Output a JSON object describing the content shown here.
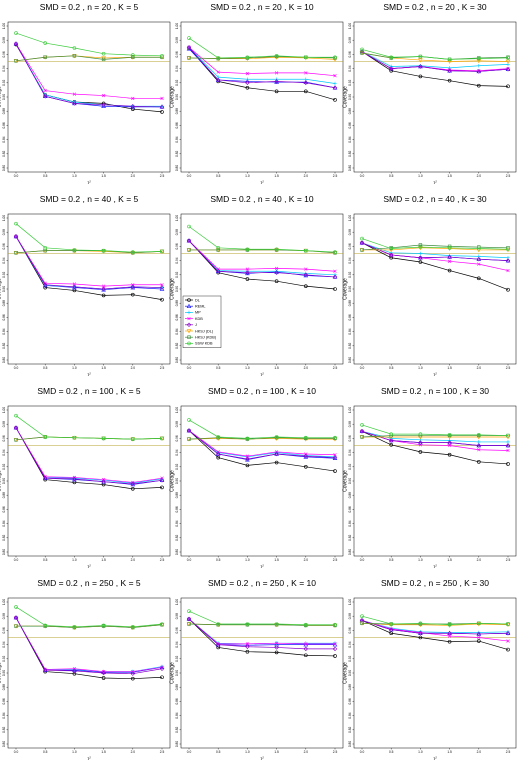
{
  "chart_data": {
    "type": "line",
    "xlabel": "τ²",
    "ylabel": "Coverage",
    "x": [
      0.0,
      0.5,
      1.0,
      1.5,
      2.0,
      2.5
    ],
    "x_ticks": [
      "0.0",
      "0.5",
      "1.0",
      "1.5",
      "2.0",
      "2.5"
    ],
    "y_ticks": [
      "0.80",
      "0.82",
      "0.84",
      "0.86",
      "0.88",
      "0.90",
      "0.92",
      "0.94",
      "0.96",
      "0.98",
      "1.00"
    ],
    "ylim": [
      0.8,
      1.0
    ],
    "reference_line": 0.95,
    "legend": {
      "placement": "left-center of panel row 2, column 2",
      "entries": [
        {
          "name": "DL",
          "color": "#000000",
          "marker": "circle"
        },
        {
          "name": "REML",
          "color": "#1a1aff",
          "marker": "triangle"
        },
        {
          "name": "MP",
          "color": "#00c8ff",
          "marker": "plus"
        },
        {
          "name": "KDB",
          "color": "#ff00ff",
          "marker": "x"
        },
        {
          "name": "J",
          "color": "#8a00c8",
          "marker": "diamond"
        },
        {
          "name": "HKSJ (DL)",
          "color": "#ffa500",
          "marker": "triangle-down"
        },
        {
          "name": "HKSJ (KDB)",
          "color": "#3c8c3c",
          "marker": "square"
        },
        {
          "name": "SSW KDB",
          "color": "#3ccc3c",
          "marker": "circle"
        }
      ]
    },
    "panels": [
      {
        "title": "SMD = 0.2 , n = 20 , K = 5",
        "series": [
          [
            0.974,
            0.903,
            0.893,
            0.891,
            0.883,
            0.879
          ],
          [
            0.975,
            0.901,
            0.891,
            0.887,
            0.886,
            0.886
          ],
          [
            0.975,
            0.903,
            0.893,
            0.889,
            0.887,
            0.887
          ],
          [
            0.975,
            0.909,
            0.904,
            0.902,
            0.898,
            0.898
          ],
          [
            0.975,
            0.901,
            0.891,
            0.889,
            0.887,
            0.886
          ],
          [
            0.951,
            0.956,
            0.958,
            0.955,
            0.956,
            0.956
          ],
          [
            0.951,
            0.956,
            0.958,
            0.953,
            0.956,
            0.956
          ],
          [
            0.99,
            0.976,
            0.969,
            0.961,
            0.959,
            0.958
          ]
        ]
      },
      {
        "title": "SMD = 0.2 , n = 20 , K = 10",
        "series": [
          [
            0.969,
            0.922,
            0.913,
            0.908,
            0.908,
            0.896
          ],
          [
            0.968,
            0.924,
            0.922,
            0.921,
            0.921,
            0.913
          ],
          [
            0.97,
            0.928,
            0.925,
            0.925,
            0.925,
            0.919
          ],
          [
            0.97,
            0.935,
            0.933,
            0.934,
            0.934,
            0.93
          ],
          [
            0.97,
            0.924,
            0.92,
            0.922,
            0.92,
            0.913
          ],
          [
            0.955,
            0.954,
            0.954,
            0.956,
            0.955,
            0.953
          ],
          [
            0.955,
            0.954,
            0.955,
            0.957,
            0.956,
            0.955
          ],
          [
            0.983,
            0.955,
            0.956,
            0.958,
            0.956,
            0.956
          ]
        ]
      },
      {
        "title": "SMD = 0.2 , n = 20 , K = 30",
        "series": [
          [
            0.964,
            0.937,
            0.929,
            0.923,
            0.916,
            0.915
          ],
          [
            0.964,
            0.94,
            0.943,
            0.937,
            0.936,
            0.939
          ],
          [
            0.964,
            0.943,
            0.944,
            0.941,
            0.944,
            0.946
          ],
          [
            0.964,
            0.94,
            0.943,
            0.938,
            0.937,
            0.94
          ],
          [
            0.964,
            0.94,
            0.943,
            0.937,
            0.936,
            0.939
          ],
          [
            0.962,
            0.955,
            0.952,
            0.95,
            0.951,
            0.95
          ],
          [
            0.962,
            0.955,
            0.957,
            0.953,
            0.955,
            0.956
          ],
          [
            0.967,
            0.956,
            0.957,
            0.953,
            0.954,
            0.955
          ]
        ]
      },
      {
        "title": "SMD = 0.2 , n = 40 , K = 5",
        "series": [
          [
            0.974,
            0.902,
            0.898,
            0.891,
            0.892,
            0.885
          ],
          [
            0.974,
            0.905,
            0.902,
            0.899,
            0.902,
            0.9
          ],
          [
            0.974,
            0.905,
            0.903,
            0.9,
            0.903,
            0.902
          ],
          [
            0.974,
            0.908,
            0.907,
            0.904,
            0.906,
            0.906
          ],
          [
            0.974,
            0.906,
            0.903,
            0.9,
            0.903,
            0.902
          ],
          [
            0.951,
            0.954,
            0.954,
            0.953,
            0.951,
            0.953
          ],
          [
            0.951,
            0.954,
            0.954,
            0.954,
            0.951,
            0.953
          ],
          [
            0.992,
            0.958,
            0.955,
            0.954,
            0.952,
            0.953
          ]
        ]
      },
      {
        "title": "SMD = 0.2 , n = 40 , K = 10",
        "series": [
          [
            0.968,
            0.923,
            0.914,
            0.911,
            0.904,
            0.9
          ],
          [
            0.968,
            0.925,
            0.922,
            0.924,
            0.919,
            0.917
          ],
          [
            0.968,
            0.926,
            0.925,
            0.925,
            0.922,
            0.92
          ],
          [
            0.968,
            0.928,
            0.928,
            0.929,
            0.928,
            0.925
          ],
          [
            0.968,
            0.925,
            0.923,
            0.923,
            0.92,
            0.917
          ],
          [
            0.955,
            0.955,
            0.955,
            0.955,
            0.954,
            0.951
          ],
          [
            0.955,
            0.955,
            0.955,
            0.955,
            0.954,
            0.951
          ],
          [
            0.988,
            0.958,
            0.956,
            0.956,
            0.954,
            0.952
          ]
        ]
      },
      {
        "title": "SMD = 0.2 , n = 40 , K = 30",
        "series": [
          [
            0.965,
            0.944,
            0.938,
            0.926,
            0.915,
            0.899
          ],
          [
            0.965,
            0.948,
            0.944,
            0.945,
            0.942,
            0.94
          ],
          [
            0.965,
            0.951,
            0.95,
            0.947,
            0.946,
            0.944
          ],
          [
            0.965,
            0.948,
            0.944,
            0.939,
            0.935,
            0.926
          ],
          [
            0.965,
            0.948,
            0.944,
            0.945,
            0.942,
            0.94
          ],
          [
            0.955,
            0.955,
            0.958,
            0.957,
            0.955,
            0.955
          ],
          [
            0.955,
            0.958,
            0.962,
            0.96,
            0.959,
            0.958
          ],
          [
            0.971,
            0.957,
            0.959,
            0.958,
            0.957,
            0.956
          ]
        ]
      },
      {
        "title": "SMD = 0.2 , n = 100 , K = 5",
        "series": [
          [
            0.975,
            0.902,
            0.898,
            0.895,
            0.889,
            0.891
          ],
          [
            0.975,
            0.904,
            0.902,
            0.899,
            0.895,
            0.901
          ],
          [
            0.975,
            0.905,
            0.904,
            0.901,
            0.897,
            0.903
          ],
          [
            0.975,
            0.906,
            0.905,
            0.902,
            0.898,
            0.904
          ],
          [
            0.975,
            0.904,
            0.903,
            0.899,
            0.896,
            0.901
          ],
          [
            0.958,
            0.962,
            0.961,
            0.96,
            0.959,
            0.96
          ],
          [
            0.958,
            0.962,
            0.961,
            0.96,
            0.959,
            0.96
          ],
          [
            0.992,
            0.962,
            0.961,
            0.96,
            0.959,
            0.96
          ]
        ]
      },
      {
        "title": "SMD = 0.2 , n = 100 , K = 10",
        "series": [
          [
            0.971,
            0.933,
            0.922,
            0.926,
            0.92,
            0.914
          ],
          [
            0.971,
            0.938,
            0.93,
            0.938,
            0.934,
            0.932
          ],
          [
            0.971,
            0.94,
            0.934,
            0.94,
            0.936,
            0.934
          ],
          [
            0.971,
            0.941,
            0.935,
            0.941,
            0.938,
            0.937
          ],
          [
            0.971,
            0.938,
            0.931,
            0.938,
            0.935,
            0.933
          ],
          [
            0.959,
            0.96,
            0.959,
            0.96,
            0.959,
            0.959
          ],
          [
            0.959,
            0.961,
            0.959,
            0.961,
            0.96,
            0.96
          ],
          [
            0.986,
            0.962,
            0.96,
            0.962,
            0.961,
            0.961
          ]
        ]
      },
      {
        "title": "SMD = 0.2 , n = 100 , K = 30",
        "series": [
          [
            0.97,
            0.951,
            0.941,
            0.937,
            0.927,
            0.924
          ],
          [
            0.97,
            0.957,
            0.954,
            0.954,
            0.95,
            0.95
          ],
          [
            0.97,
            0.96,
            0.958,
            0.957,
            0.955,
            0.955
          ],
          [
            0.97,
            0.957,
            0.951,
            0.95,
            0.944,
            0.943
          ],
          [
            0.97,
            0.957,
            0.954,
            0.954,
            0.95,
            0.95
          ],
          [
            0.962,
            0.962,
            0.962,
            0.962,
            0.962,
            0.962
          ],
          [
            0.962,
            0.964,
            0.964,
            0.964,
            0.964,
            0.964
          ],
          [
            0.979,
            0.966,
            0.966,
            0.965,
            0.965,
            0.964
          ]
        ]
      },
      {
        "title": "SMD = 0.2 , n = 250 , K = 5",
        "series": [
          [
            0.978,
            0.902,
            0.899,
            0.893,
            0.892,
            0.894
          ],
          [
            0.978,
            0.904,
            0.904,
            0.901,
            0.901,
            0.908
          ],
          [
            0.978,
            0.905,
            0.905,
            0.902,
            0.902,
            0.909
          ],
          [
            0.978,
            0.905,
            0.906,
            0.902,
            0.902,
            0.908
          ],
          [
            0.978,
            0.904,
            0.903,
            0.9,
            0.899,
            0.906
          ],
          [
            0.966,
            0.966,
            0.964,
            0.966,
            0.964,
            0.968
          ],
          [
            0.966,
            0.966,
            0.964,
            0.966,
            0.964,
            0.968
          ],
          [
            0.993,
            0.967,
            0.965,
            0.967,
            0.965,
            0.969
          ]
        ]
      },
      {
        "title": "SMD = 0.2 , n = 250 , K = 10",
        "series": [
          [
            0.976,
            0.936,
            0.93,
            0.929,
            0.925,
            0.924
          ],
          [
            0.976,
            0.94,
            0.939,
            0.94,
            0.94,
            0.94
          ],
          [
            0.976,
            0.942,
            0.941,
            0.942,
            0.942,
            0.942
          ],
          [
            0.976,
            0.941,
            0.941,
            0.942,
            0.941,
            0.941
          ],
          [
            0.976,
            0.94,
            0.937,
            0.936,
            0.934,
            0.934
          ],
          [
            0.969,
            0.968,
            0.968,
            0.968,
            0.967,
            0.967
          ],
          [
            0.969,
            0.968,
            0.968,
            0.968,
            0.967,
            0.967
          ],
          [
            0.987,
            0.969,
            0.969,
            0.969,
            0.968,
            0.968
          ]
        ]
      },
      {
        "title": "SMD = 0.2 , n = 250 , K = 30",
        "series": [
          [
            0.974,
            0.956,
            0.95,
            0.944,
            0.945,
            0.933
          ],
          [
            0.974,
            0.961,
            0.956,
            0.956,
            0.955,
            0.956
          ],
          [
            0.974,
            0.963,
            0.958,
            0.957,
            0.957,
            0.958
          ],
          [
            0.974,
            0.962,
            0.957,
            0.952,
            0.95,
            0.945
          ],
          [
            0.974,
            0.961,
            0.956,
            0.956,
            0.955,
            0.956
          ],
          [
            0.97,
            0.968,
            0.968,
            0.967,
            0.969,
            0.968
          ],
          [
            0.97,
            0.969,
            0.969,
            0.969,
            0.97,
            0.969
          ],
          [
            0.98,
            0.969,
            0.97,
            0.968,
            0.97,
            0.969
          ]
        ]
      }
    ]
  }
}
